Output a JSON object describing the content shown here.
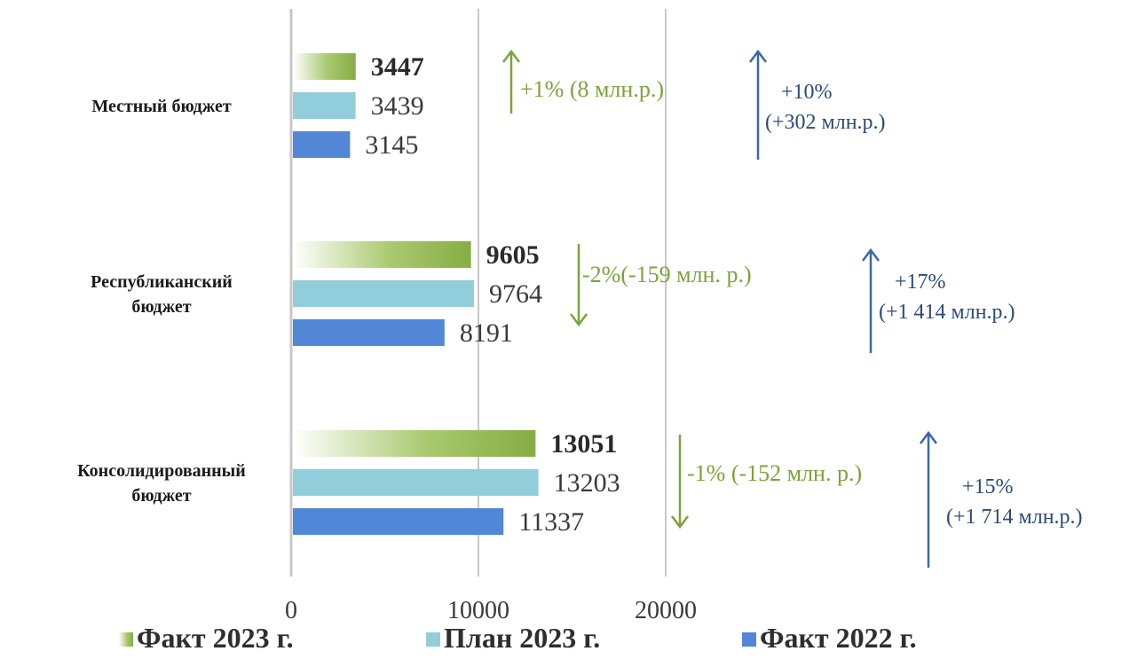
{
  "chart_data": {
    "type": "bar",
    "orientation": "horizontal",
    "categories": [
      [
        "Местный бюджет"
      ],
      [
        "Республиканский",
        "бюджет"
      ],
      [
        "Консолидированный",
        "бюджет"
      ]
    ],
    "series": [
      {
        "name": "Факт 2023 г.",
        "values": [
          3447,
          9605,
          13051
        ],
        "color": "#8db24b",
        "bold_labels": true
      },
      {
        "name": "План 2023 г.",
        "values": [
          3439,
          9764,
          13203
        ],
        "color": "#92cddc",
        "bold_labels": false
      },
      {
        "name": "Факт 2022 г.",
        "values": [
          3145,
          8191,
          11337
        ],
        "color": "#5286d6",
        "bold_labels": false
      }
    ],
    "xlim": [
      0,
      30000
    ],
    "x_ticks": [
      0,
      10000,
      20000
    ],
    "grid": true,
    "legend_position": "bottom",
    "annotations": [
      {
        "category": 0,
        "color": "green",
        "direction": "up",
        "lines": [
          "+1% (8 млн.р.)"
        ]
      },
      {
        "category": 0,
        "color": "blue",
        "direction": "up",
        "lines": [
          "+10%",
          "(+302 млн.р.)"
        ]
      },
      {
        "category": 1,
        "color": "green",
        "direction": "down",
        "lines": [
          "-2%(-159 млн. р.)"
        ]
      },
      {
        "category": 1,
        "color": "blue",
        "direction": "up",
        "lines": [
          "+17%",
          "(+1 414 млн.р.)"
        ]
      },
      {
        "category": 2,
        "color": "green",
        "direction": "down",
        "lines": [
          "-1% (-152 млн. р.)"
        ]
      },
      {
        "category": 2,
        "color": "blue",
        "direction": "up",
        "lines": [
          "+15%",
          "(+1 714 млн.р.)"
        ]
      }
    ]
  }
}
